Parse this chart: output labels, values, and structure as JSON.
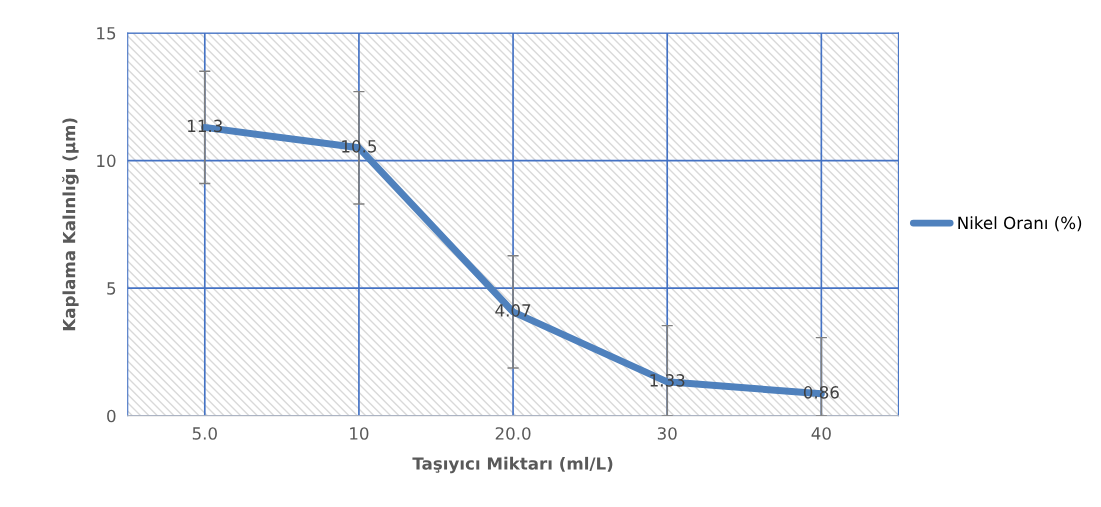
{
  "chart_data": {
    "type": "line",
    "xlabel": "Taşıyıcı Miktarı (ml/L)",
    "ylabel": "Kaplama Kalınlığı (µm)",
    "categories": [
      "5.0",
      "10",
      "20.0",
      "30",
      "40"
    ],
    "series": [
      {
        "name": "Nikel Oranı (%)",
        "color": "#4f81bd",
        "values": [
          11.3,
          10.5,
          4.07,
          1.33,
          0.86
        ],
        "errors": [
          2.2,
          2.2,
          2.2,
          [
            0,
            3.53
          ],
          [
            0,
            3.06
          ]
        ]
      }
    ],
    "ylim": [
      0,
      15
    ],
    "yticks": [
      0,
      5,
      10,
      15
    ],
    "grid": true,
    "legend": "right",
    "data_labels": true,
    "line_style": "solid"
  }
}
